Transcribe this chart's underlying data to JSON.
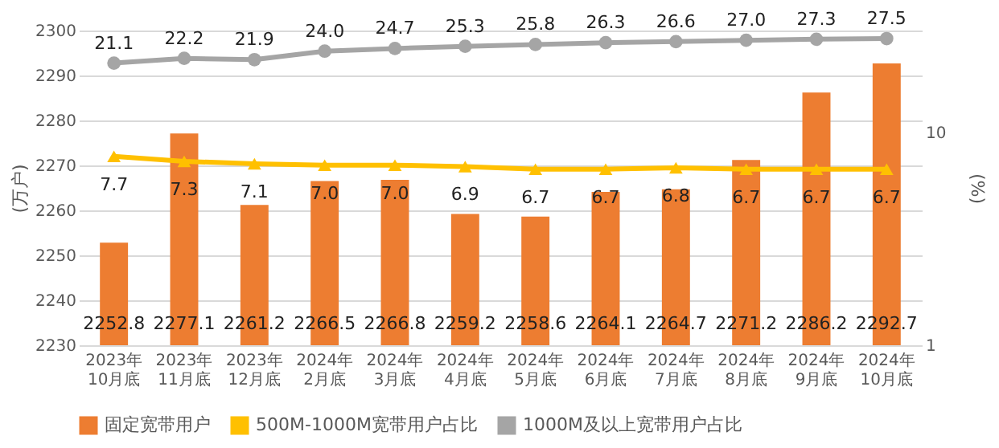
{
  "chart_data": {
    "type": "bar",
    "ylabel": "(万户)",
    "y2label": "(%)",
    "categories": [
      "2023年\n10月底",
      "2023年\n11月底",
      "2023年\n12月底",
      "2024年\n2月底",
      "2024年\n3月底",
      "2024年\n4月底",
      "2024年\n5月底",
      "2024年\n6月底",
      "2024年\n7月底",
      "2024年\n8月底",
      "2024年\n9月底",
      "2024年\n10月底"
    ],
    "series": [
      {
        "name": "固定宽带用户",
        "color": "#ed7d31",
        "values": [
          2252.8,
          2277.1,
          2261.2,
          2266.5,
          2266.8,
          2259.2,
          2258.6,
          2264.1,
          2264.7,
          2271.2,
          2286.2,
          2292.7
        ],
        "value_labels": [
          "2252.8",
          "2277.1",
          "2261.2",
          "2266.5",
          "2266.8",
          "2259.2",
          "2258.6",
          "2264.1",
          "2264.7",
          "2271.2",
          "2286.2",
          "2292.7"
        ]
      },
      {
        "name": "500M-1000M宽带用户占比",
        "type": "line",
        "axis": "y2",
        "marker": "triangle",
        "color": "#ffc000",
        "values": [
          7.7,
          7.3,
          7.1,
          7.0,
          7.0,
          6.9,
          6.7,
          6.7,
          6.8,
          6.7,
          6.7,
          6.7
        ],
        "value_labels": [
          "7.7",
          "7.3",
          "7.1",
          "7.0",
          "7.0",
          "6.9",
          "6.7",
          "6.7",
          "6.8",
          "6.7",
          "6.7",
          "6.7"
        ]
      },
      {
        "name": "1000M及以上宽带用户占比",
        "type": "line",
        "axis": "y2",
        "marker": "circle",
        "color": "#a5a5a5",
        "values": [
          21.1,
          22.2,
          21.9,
          24.0,
          24.7,
          25.3,
          25.8,
          26.3,
          26.6,
          27.0,
          27.3,
          27.5
        ],
        "value_labels": [
          "21.1",
          "22.2",
          "21.9",
          "24.0",
          "24.7",
          "25.3",
          "25.8",
          "26.3",
          "26.6",
          "27.0",
          "27.3",
          "27.5"
        ]
      }
    ],
    "ylim": [
      2230,
      2300
    ],
    "yticks": [
      2230,
      2240,
      2250,
      2260,
      2270,
      2280,
      2290,
      2300
    ],
    "y2lim": [
      1,
      30
    ],
    "y2ticks": [
      1,
      10
    ],
    "log": "y2",
    "grid": "y",
    "legend": "bottom"
  }
}
